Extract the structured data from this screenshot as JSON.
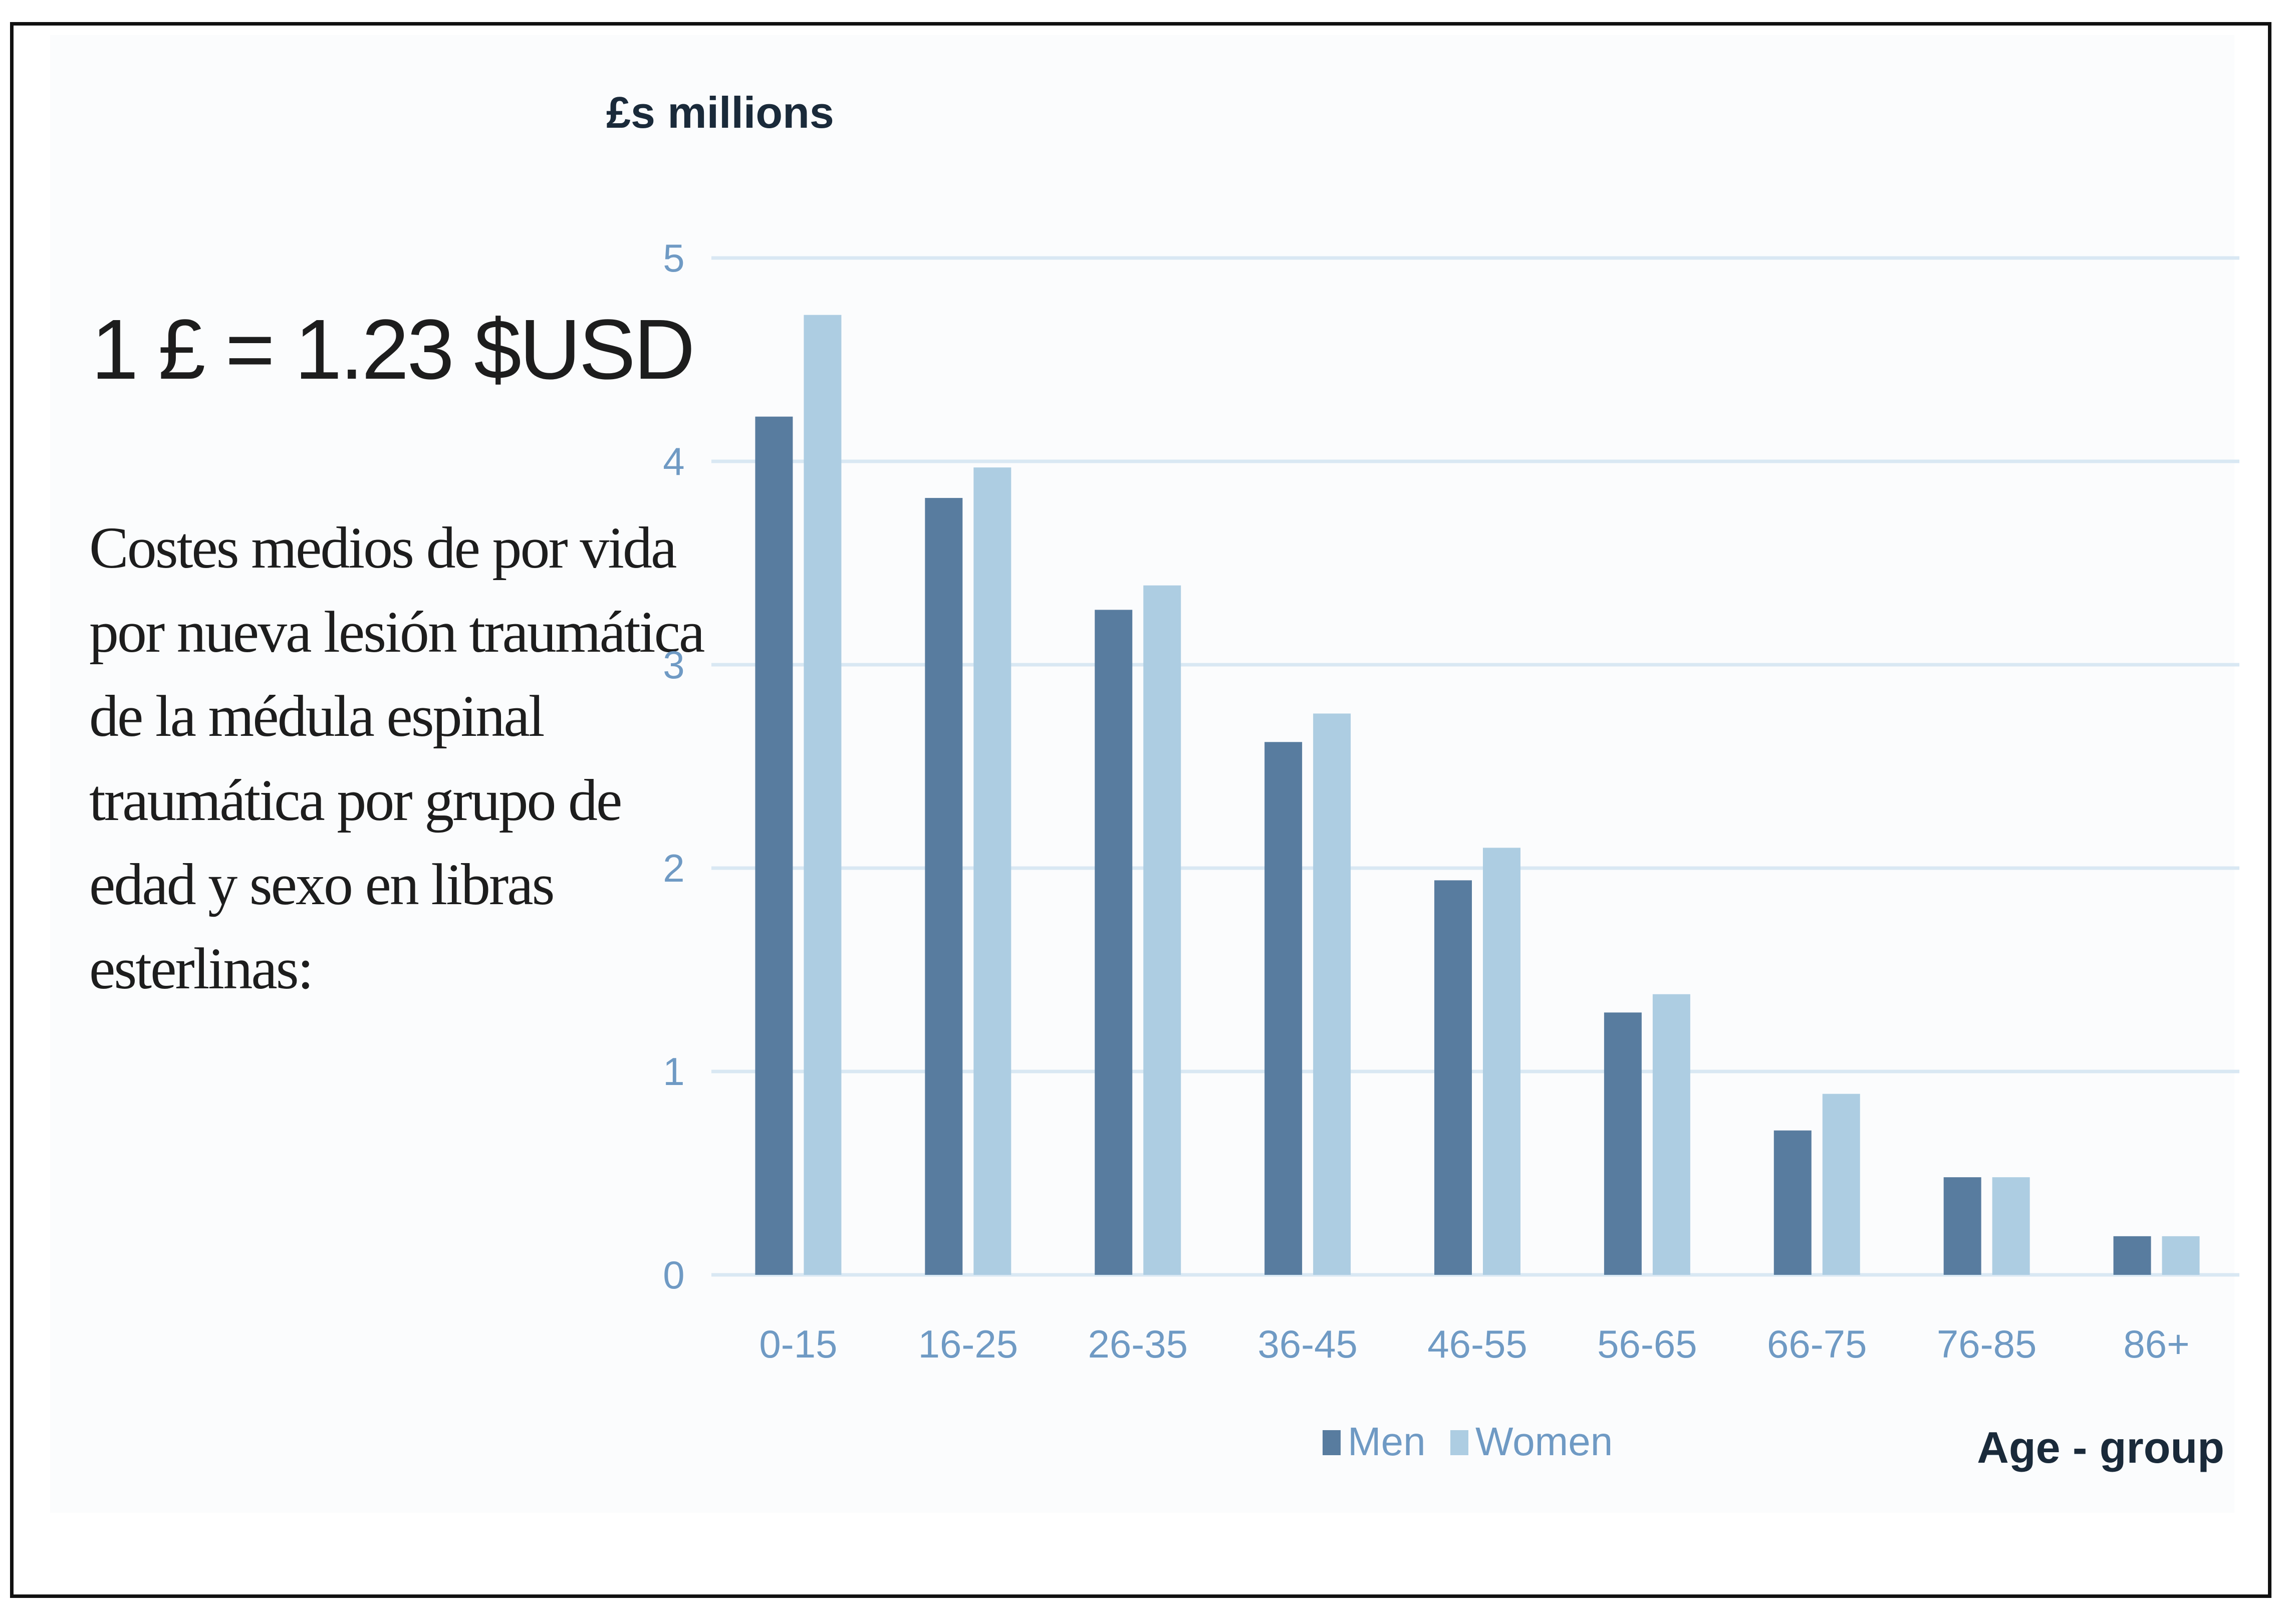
{
  "exchange_rate": "1 £ = 1.23 $USD",
  "description_lines": [
    "Costes medios de por vida",
    "por nueva lesión traumática",
    "de la médula espinal",
    "traumática por grupo de",
    "edad y sexo en libras",
    "esterlinas:"
  ],
  "colors": {
    "men": "#587c9f",
    "women": "#adcde2",
    "grid": "#d9e8f3",
    "tick": "#6f9ac4"
  },
  "chart_data": {
    "type": "bar",
    "ylabel": "£s millions",
    "xlabel": "Age - group",
    "ylim": [
      0,
      5
    ],
    "yticks": [
      0,
      1,
      2,
      3,
      4,
      5
    ],
    "grid": true,
    "legend_position": "bottom-center",
    "categories": [
      "0-15",
      "16-25",
      "26-35",
      "36-45",
      "46-55",
      "56-65",
      "66-75",
      "76-85",
      "86+"
    ],
    "series": [
      {
        "name": "Men",
        "values": [
          4.22,
          3.82,
          3.27,
          2.62,
          1.94,
          1.29,
          0.71,
          0.48,
          0.19
        ]
      },
      {
        "name": "Women",
        "values": [
          4.72,
          3.97,
          3.39,
          2.76,
          2.1,
          1.38,
          0.89,
          0.48,
          0.19
        ]
      }
    ]
  }
}
